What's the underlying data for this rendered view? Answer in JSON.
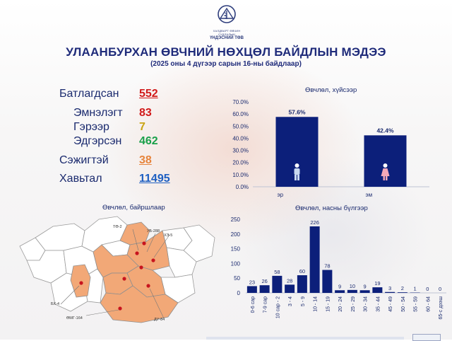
{
  "header": {
    "logo_line1": "ХАЛДВАРТ ӨВЧИН СУДЛАЛЫН",
    "logo_line2": "ҮНДЭСНИЙ ТӨВ",
    "title": "УЛААНБУРХАН ӨВЧНИЙ НӨХЦӨЛ БАЙДЛЫН МЭДЭЭ",
    "subtitle": "(2025 оны 4 дүгээр сарын 16-ны байдлаар)"
  },
  "stats": {
    "confirmed_label": "Батлагдсан",
    "confirmed_value": "552",
    "hospital_label": "Эмнэлэгт",
    "hospital_value": "83",
    "home_label": "Гэрээр",
    "home_value": "7",
    "recovered_label": "Эдгэрсэн",
    "recovered_value": "462",
    "suspected_label": "Сэжигтэй",
    "suspected_value": "38",
    "contacts_label": "Хавьтал",
    "contacts_value": "11495"
  },
  "map": {
    "title": "Өвчлөл, байршлаар",
    "labels": [
      "ТӨ-2",
      "УБ-288",
      "ХЭ-5",
      "БХ-4",
      "ӨМГ-164",
      "ДУ-84"
    ],
    "highlight_color": "#f2a877",
    "dot_color": "#c8141e"
  },
  "colors": {
    "navy": "#0c1f7a",
    "female_icon": "#f4a8b8",
    "male_icon": "#c8d8f0"
  },
  "chart_data": [
    {
      "type": "bar",
      "title": "Өвчлөл, хүйсээр",
      "categories": [
        "эр",
        "эм"
      ],
      "values": [
        57.6,
        42.4
      ],
      "value_labels": [
        "57.6%",
        "42.4%"
      ],
      "yticks": [
        "0.0%",
        "10.0%",
        "20.0%",
        "30.0%",
        "40.0%",
        "50.0%",
        "60.0%",
        "70.0%"
      ],
      "ylim": [
        0,
        70
      ],
      "icons": [
        "male-icon",
        "female-icon"
      ]
    },
    {
      "type": "bar",
      "title": "Өвчлөл, насны бүлгээр",
      "categories": [
        "0-6 сар",
        "7-9 сар",
        "10 сар - 2",
        "3 - 4",
        "5 - 9",
        "10 - 14",
        "15 - 19",
        "20 - 24",
        "25 - 29",
        "30 - 34",
        "35 - 44",
        "45 - 49",
        "50 - 54",
        "55 - 59",
        "60 - 64",
        "65-с дээш"
      ],
      "values": [
        23,
        26,
        58,
        28,
        60,
        226,
        78,
        9,
        10,
        9,
        19,
        3,
        2,
        1,
        0,
        0
      ],
      "yticks": [
        "0",
        "50",
        "100",
        "150",
        "200",
        "250"
      ],
      "ylim": [
        0,
        250
      ]
    }
  ]
}
